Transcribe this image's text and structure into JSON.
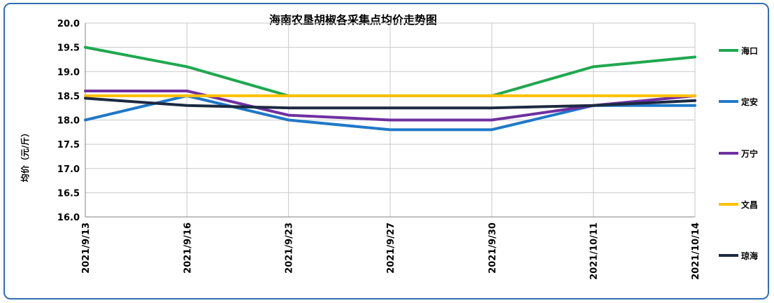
{
  "chart_data": {
    "type": "line",
    "title": "海南农垦胡椒各采集点均价走势图",
    "ylabel": "均价（元/斤）",
    "xlabel": "",
    "categories": [
      "2021/9/13",
      "2021/9/16",
      "2021/9/23",
      "2021/9/27",
      "2021/9/30",
      "2021/10/11",
      "2021/10/14"
    ],
    "ylim": [
      16.0,
      20.0
    ],
    "yticks": [
      "16.0",
      "16.5",
      "17.0",
      "17.5",
      "18.0",
      "18.5",
      "19.0",
      "19.5",
      "20.0"
    ],
    "grid": true,
    "legend_position": "right",
    "series": [
      {
        "name": "海口",
        "color": "#1fa84f",
        "values": [
          19.5,
          19.1,
          18.5,
          18.5,
          18.5,
          19.1,
          19.3
        ]
      },
      {
        "name": "定安",
        "color": "#1f78c8",
        "values": [
          18.0,
          18.5,
          18.0,
          17.8,
          17.8,
          18.3,
          18.3
        ]
      },
      {
        "name": "万宁",
        "color": "#7030a0",
        "values": [
          18.6,
          18.6,
          18.1,
          18.0,
          18.0,
          18.3,
          18.5
        ]
      },
      {
        "name": "文昌",
        "color": "#ffc000",
        "values": [
          18.5,
          18.5,
          18.5,
          18.5,
          18.5,
          18.5,
          18.5
        ]
      },
      {
        "name": "琼海",
        "color": "#1b2a41",
        "values": [
          18.45,
          18.3,
          18.25,
          18.25,
          18.25,
          18.3,
          18.4
        ]
      }
    ]
  }
}
